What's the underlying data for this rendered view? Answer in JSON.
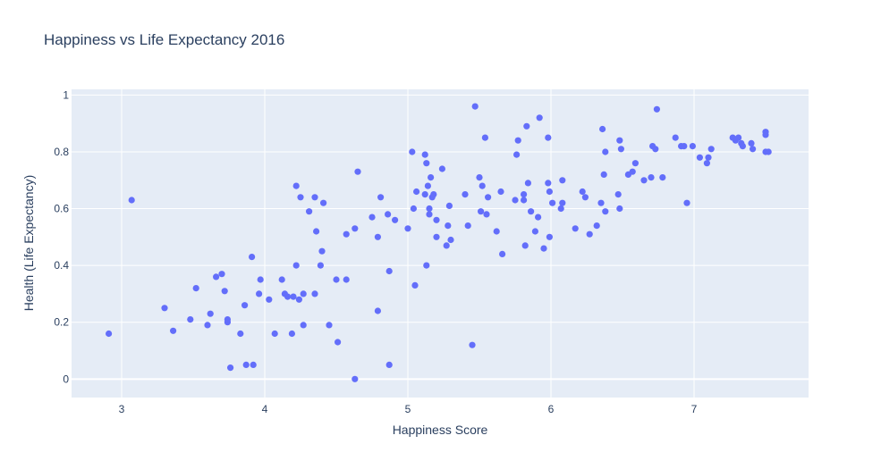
{
  "chart_data": {
    "type": "scatter",
    "title": "Happiness vs Life Expectancy 2016",
    "xlabel": "Happiness Score",
    "ylabel": "Health (Life Expectancy)",
    "xlim": [
      2.65,
      7.8
    ],
    "ylim": [
      -0.065,
      1.02
    ],
    "xticks": [
      3,
      4,
      5,
      6,
      7
    ],
    "yticks": [
      0,
      0.2,
      0.4,
      0.6,
      0.8,
      1
    ],
    "grid": true,
    "colors": {
      "marker": "#636efa",
      "plot_bg": "#e5ecf6",
      "grid": "#ffffff",
      "text": "#2a3f5f"
    },
    "points": [
      [
        2.91,
        0.16
      ],
      [
        3.07,
        0.63
      ],
      [
        3.3,
        0.25
      ],
      [
        3.36,
        0.17
      ],
      [
        3.48,
        0.21
      ],
      [
        3.52,
        0.32
      ],
      [
        3.6,
        0.19
      ],
      [
        3.62,
        0.23
      ],
      [
        3.66,
        0.36
      ],
      [
        3.7,
        0.37
      ],
      [
        3.72,
        0.31
      ],
      [
        3.74,
        0.21
      ],
      [
        3.74,
        0.2
      ],
      [
        3.76,
        0.04
      ],
      [
        3.83,
        0.16
      ],
      [
        3.86,
        0.26
      ],
      [
        3.87,
        0.05
      ],
      [
        3.91,
        0.43
      ],
      [
        3.92,
        0.05
      ],
      [
        3.96,
        0.3
      ],
      [
        3.97,
        0.35
      ],
      [
        4.03,
        0.28
      ],
      [
        4.07,
        0.16
      ],
      [
        4.12,
        0.35
      ],
      [
        4.14,
        0.3
      ],
      [
        4.16,
        0.29
      ],
      [
        4.19,
        0.16
      ],
      [
        4.2,
        0.29
      ],
      [
        4.22,
        0.68
      ],
      [
        4.22,
        0.4
      ],
      [
        4.24,
        0.28
      ],
      [
        4.25,
        0.64
      ],
      [
        4.27,
        0.19
      ],
      [
        4.27,
        0.3
      ],
      [
        4.31,
        0.59
      ],
      [
        4.35,
        0.3
      ],
      [
        4.35,
        0.64
      ],
      [
        4.36,
        0.52
      ],
      [
        4.39,
        0.4
      ],
      [
        4.4,
        0.45
      ],
      [
        4.41,
        0.62
      ],
      [
        4.45,
        0.19
      ],
      [
        4.5,
        0.35
      ],
      [
        4.51,
        0.13
      ],
      [
        4.57,
        0.51
      ],
      [
        4.57,
        0.35
      ],
      [
        4.63,
        0.0
      ],
      [
        4.63,
        0.53
      ],
      [
        4.65,
        0.73
      ],
      [
        4.75,
        0.57
      ],
      [
        4.79,
        0.5
      ],
      [
        4.79,
        0.24
      ],
      [
        4.81,
        0.64
      ],
      [
        4.86,
        0.58
      ],
      [
        4.87,
        0.05
      ],
      [
        4.87,
        0.38
      ],
      [
        4.91,
        0.56
      ],
      [
        5.0,
        0.53
      ],
      [
        5.03,
        0.8
      ],
      [
        5.04,
        0.6
      ],
      [
        5.05,
        0.33
      ],
      [
        5.06,
        0.66
      ],
      [
        5.12,
        0.65
      ],
      [
        5.12,
        0.79
      ],
      [
        5.13,
        0.76
      ],
      [
        5.13,
        0.4
      ],
      [
        5.14,
        0.68
      ],
      [
        5.15,
        0.6
      ],
      [
        5.15,
        0.58
      ],
      [
        5.16,
        0.71
      ],
      [
        5.17,
        0.64
      ],
      [
        5.18,
        0.65
      ],
      [
        5.2,
        0.56
      ],
      [
        5.2,
        0.5
      ],
      [
        5.24,
        0.74
      ],
      [
        5.27,
        0.47
      ],
      [
        5.28,
        0.54
      ],
      [
        5.29,
        0.61
      ],
      [
        5.3,
        0.49
      ],
      [
        5.4,
        0.65
      ],
      [
        5.42,
        0.54
      ],
      [
        5.45,
        0.12
      ],
      [
        5.47,
        0.96
      ],
      [
        5.5,
        0.71
      ],
      [
        5.51,
        0.59
      ],
      [
        5.52,
        0.68
      ],
      [
        5.54,
        0.85
      ],
      [
        5.55,
        0.58
      ],
      [
        5.56,
        0.64
      ],
      [
        5.62,
        0.52
      ],
      [
        5.65,
        0.66
      ],
      [
        5.66,
        0.44
      ],
      [
        5.75,
        0.63
      ],
      [
        5.76,
        0.79
      ],
      [
        5.77,
        0.84
      ],
      [
        5.81,
        0.65
      ],
      [
        5.81,
        0.63
      ],
      [
        5.82,
        0.47
      ],
      [
        5.83,
        0.89
      ],
      [
        5.84,
        0.69
      ],
      [
        5.86,
        0.59
      ],
      [
        5.89,
        0.52
      ],
      [
        5.91,
        0.57
      ],
      [
        5.92,
        0.92
      ],
      [
        5.95,
        0.46
      ],
      [
        5.98,
        0.69
      ],
      [
        5.98,
        0.85
      ],
      [
        5.99,
        0.5
      ],
      [
        5.99,
        0.66
      ],
      [
        6.01,
        0.62
      ],
      [
        6.07,
        0.6
      ],
      [
        6.08,
        0.62
      ],
      [
        6.08,
        0.7
      ],
      [
        6.17,
        0.53
      ],
      [
        6.22,
        0.66
      ],
      [
        6.24,
        0.64
      ],
      [
        6.27,
        0.51
      ],
      [
        6.32,
        0.54
      ],
      [
        6.35,
        0.62
      ],
      [
        6.36,
        0.88
      ],
      [
        6.37,
        0.72
      ],
      [
        6.38,
        0.8
      ],
      [
        6.38,
        0.59
      ],
      [
        6.47,
        0.65
      ],
      [
        6.48,
        0.6
      ],
      [
        6.48,
        0.84
      ],
      [
        6.49,
        0.81
      ],
      [
        6.54,
        0.72
      ],
      [
        6.57,
        0.73
      ],
      [
        6.59,
        0.76
      ],
      [
        6.65,
        0.7
      ],
      [
        6.7,
        0.71
      ],
      [
        6.71,
        0.82
      ],
      [
        6.73,
        0.81
      ],
      [
        6.74,
        0.95
      ],
      [
        6.78,
        0.71
      ],
      [
        6.87,
        0.85
      ],
      [
        6.91,
        0.82
      ],
      [
        6.93,
        0.82
      ],
      [
        6.95,
        0.62
      ],
      [
        6.99,
        0.82
      ],
      [
        7.04,
        0.78
      ],
      [
        7.09,
        0.76
      ],
      [
        7.1,
        0.78
      ],
      [
        7.12,
        0.81
      ],
      [
        7.27,
        0.85
      ],
      [
        7.29,
        0.84
      ],
      [
        7.31,
        0.85
      ],
      [
        7.33,
        0.83
      ],
      [
        7.34,
        0.82
      ],
      [
        7.4,
        0.83
      ],
      [
        7.41,
        0.81
      ],
      [
        7.5,
        0.87
      ],
      [
        7.5,
        0.86
      ],
      [
        7.5,
        0.8
      ],
      [
        7.52,
        0.8
      ]
    ]
  }
}
